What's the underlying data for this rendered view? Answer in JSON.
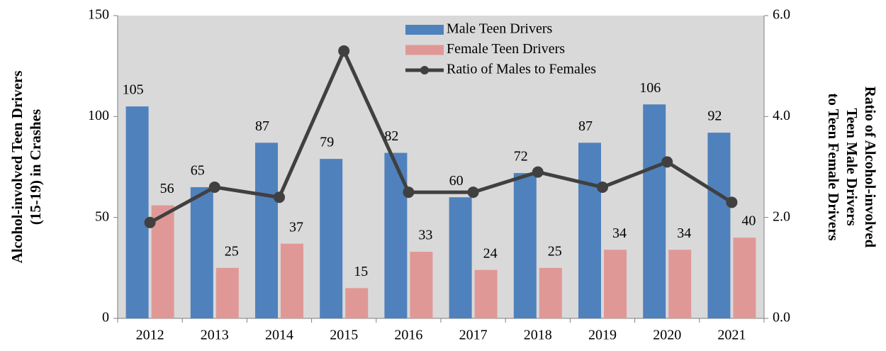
{
  "chart_data": {
    "type": "bar",
    "categories": [
      "2012",
      "2013",
      "2014",
      "2015",
      "2016",
      "2017",
      "2018",
      "2019",
      "2020",
      "2021"
    ],
    "series": [
      {
        "name": "Male Teen Drivers",
        "color": "#4f81bd",
        "values": [
          105,
          65,
          87,
          79,
          82,
          60,
          72,
          87,
          106,
          92
        ]
      },
      {
        "name": "Female Teen Drivers",
        "color": "#e09896",
        "values": [
          56,
          25,
          37,
          15,
          33,
          24,
          25,
          34,
          34,
          40
        ]
      },
      {
        "name": "Ratio of Males to Females",
        "type": "line",
        "axis": "y2",
        "color": "#404040",
        "values": [
          1.9,
          2.6,
          2.4,
          5.3,
          2.5,
          2.5,
          2.9,
          2.6,
          3.1,
          2.3
        ]
      }
    ],
    "ylabel": [
      "Alcohol-involved Teen Drivers",
      "(15-19) in Crashes"
    ],
    "y2label": [
      "Ratio of Alcohol-involved",
      "Teen Male Drivers",
      "to Teen Female Drivers"
    ],
    "ylim": [
      0,
      150
    ],
    "yticks": [
      0,
      50,
      100,
      150
    ],
    "y2lim": [
      0,
      6
    ],
    "y2ticks": [
      {
        "value": 0,
        "label": "0.0"
      },
      {
        "value": 2,
        "label": "2.0"
      },
      {
        "value": 4,
        "label": "4.0"
      },
      {
        "value": 6,
        "label": "6.0"
      }
    ],
    "grid": false,
    "legend": "top"
  }
}
